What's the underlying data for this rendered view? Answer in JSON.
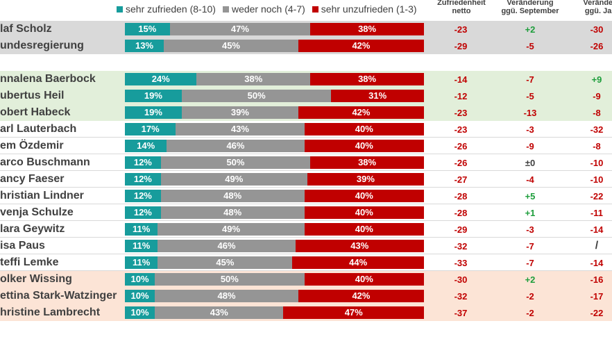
{
  "legend": [
    {
      "label": "sehr zufrieden (8-10)",
      "color": "#179c9c"
    },
    {
      "label": "weder noch (4-7)",
      "color": "#959595"
    },
    {
      "label": "sehr unzufrieden (1-3)",
      "color": "#c00000"
    }
  ],
  "columns": [
    {
      "line1": "Zufriedenheit",
      "line2": "netto"
    },
    {
      "line1": "Veränderung",
      "line2": "ggü. September"
    },
    {
      "line1": "Veränderung",
      "line2": "ggü. Januar"
    }
  ],
  "colors": {
    "positive": "#1e9e3c",
    "negative": "#c00000",
    "neutral": "#404040",
    "group_gray": "#d9d9d9",
    "group_green": "#e2efda",
    "group_orange": "#fce4d6"
  },
  "chart_data": {
    "type": "bar",
    "stacked": true,
    "orientation": "horizontal",
    "series": [
      {
        "name": "sehr zufrieden (8-10)",
        "color": "#179c9c"
      },
      {
        "name": "weder noch (4-7)",
        "color": "#959595"
      },
      {
        "name": "sehr unzufrieden (1-3)",
        "color": "#c00000"
      }
    ],
    "rows": [
      {
        "name": "laf Scholz",
        "group": "gray",
        "values": [
          15,
          47,
          38
        ],
        "netto": "-23",
        "sep": "+2",
        "jan": "-30"
      },
      {
        "name": "undesregierung",
        "group": "gray",
        "values": [
          13,
          45,
          42
        ],
        "netto": "-29",
        "sep": "-5",
        "jan": "-26"
      },
      {
        "name": "nnalena Baerbock",
        "group": "green",
        "values": [
          24,
          38,
          38
        ],
        "netto": "-14",
        "sep": "-7",
        "jan": "+9"
      },
      {
        "name": "ubertus Heil",
        "group": "green",
        "values": [
          19,
          50,
          31
        ],
        "netto": "-12",
        "sep": "-5",
        "jan": "-9"
      },
      {
        "name": "obert Habeck",
        "group": "green",
        "values": [
          19,
          39,
          42
        ],
        "netto": "-23",
        "sep": "-13",
        "jan": "-8"
      },
      {
        "name": "arl Lauterbach",
        "group": "none",
        "values": [
          17,
          43,
          40
        ],
        "netto": "-23",
        "sep": "-3",
        "jan": "-32"
      },
      {
        "name": "em Özdemir",
        "group": "none",
        "values": [
          14,
          46,
          40
        ],
        "netto": "-26",
        "sep": "-9",
        "jan": "-8"
      },
      {
        "name": "arco Buschmann",
        "group": "none",
        "values": [
          12,
          50,
          38
        ],
        "netto": "-26",
        "sep": "±0",
        "jan": "-10"
      },
      {
        "name": "ancy Faeser",
        "group": "none",
        "values": [
          12,
          49,
          39
        ],
        "netto": "-27",
        "sep": "-4",
        "jan": "-10"
      },
      {
        "name": "hristian Lindner",
        "group": "none",
        "values": [
          12,
          48,
          40
        ],
        "netto": "-28",
        "sep": "+5",
        "jan": "-22"
      },
      {
        "name": "venja Schulze",
        "group": "none",
        "values": [
          12,
          48,
          40
        ],
        "netto": "-28",
        "sep": "+1",
        "jan": "-11"
      },
      {
        "name": "lara Geywitz",
        "group": "none",
        "values": [
          11,
          49,
          40
        ],
        "netto": "-29",
        "sep": "-3",
        "jan": "-14"
      },
      {
        "name": "isa Paus",
        "group": "none",
        "values": [
          11,
          46,
          43
        ],
        "netto": "-32",
        "sep": "-7",
        "jan": "/"
      },
      {
        "name": "teffi Lemke",
        "group": "none",
        "values": [
          11,
          45,
          44
        ],
        "netto": "-33",
        "sep": "-7",
        "jan": "-14"
      },
      {
        "name": "olker Wissing",
        "group": "orange",
        "values": [
          10,
          50,
          40
        ],
        "netto": "-30",
        "sep": "+2",
        "jan": "-16"
      },
      {
        "name": "ettina Stark-Watzinger",
        "group": "orange",
        "values": [
          10,
          48,
          42
        ],
        "netto": "-32",
        "sep": "-2",
        "jan": "-17"
      },
      {
        "name": "hristine Lambrecht",
        "group": "orange",
        "values": [
          10,
          43,
          47
        ],
        "netto": "-37",
        "sep": "-2",
        "jan": "-22"
      }
    ]
  }
}
